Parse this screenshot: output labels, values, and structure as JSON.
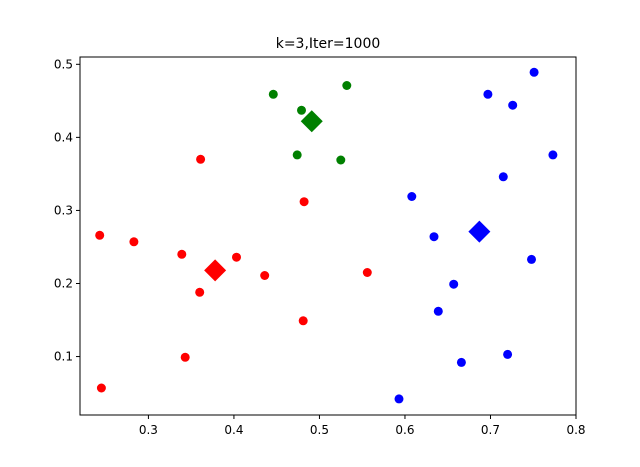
{
  "chart_data": {
    "type": "scatter",
    "title": "k=3,Iter=1000",
    "xlabel": "",
    "ylabel": "",
    "xlim": [
      0.22,
      0.8
    ],
    "ylim": [
      0.02,
      0.51
    ],
    "xticks": [
      0.3,
      0.4,
      0.5,
      0.6,
      0.7,
      0.8
    ],
    "yticks": [
      0.1,
      0.2,
      0.3,
      0.4,
      0.5
    ],
    "xtick_labels": [
      "0.3",
      "0.4",
      "0.5",
      "0.6",
      "0.7",
      "0.8"
    ],
    "ytick_labels": [
      "0.1",
      "0.2",
      "0.3",
      "0.4",
      "0.5"
    ],
    "grid": false,
    "legend": "none",
    "series": [
      {
        "color": "#ff0000",
        "points": [
          [
            0.243,
            0.266
          ],
          [
            0.283,
            0.257
          ],
          [
            0.361,
            0.37
          ],
          [
            0.482,
            0.312
          ],
          [
            0.339,
            0.24
          ],
          [
            0.403,
            0.236
          ],
          [
            0.436,
            0.211
          ],
          [
            0.556,
            0.215
          ],
          [
            0.36,
            0.188
          ],
          [
            0.481,
            0.149
          ],
          [
            0.343,
            0.099
          ],
          [
            0.245,
            0.057
          ]
        ],
        "centroid": [
          0.378,
          0.218
        ]
      },
      {
        "color": "#008000",
        "points": [
          [
            0.446,
            0.459
          ],
          [
            0.479,
            0.437
          ],
          [
            0.532,
            0.471
          ],
          [
            0.474,
            0.376
          ],
          [
            0.525,
            0.369
          ]
        ],
        "centroid": [
          0.491,
          0.422
        ]
      },
      {
        "color": "#0000ff",
        "points": [
          [
            0.751,
            0.489
          ],
          [
            0.697,
            0.459
          ],
          [
            0.726,
            0.444
          ],
          [
            0.773,
            0.376
          ],
          [
            0.715,
            0.346
          ],
          [
            0.608,
            0.319
          ],
          [
            0.634,
            0.264
          ],
          [
            0.748,
            0.233
          ],
          [
            0.657,
            0.199
          ],
          [
            0.639,
            0.162
          ],
          [
            0.72,
            0.103
          ],
          [
            0.666,
            0.092
          ],
          [
            0.593,
            0.042
          ]
        ],
        "centroid": [
          0.687,
          0.271
        ]
      }
    ]
  }
}
